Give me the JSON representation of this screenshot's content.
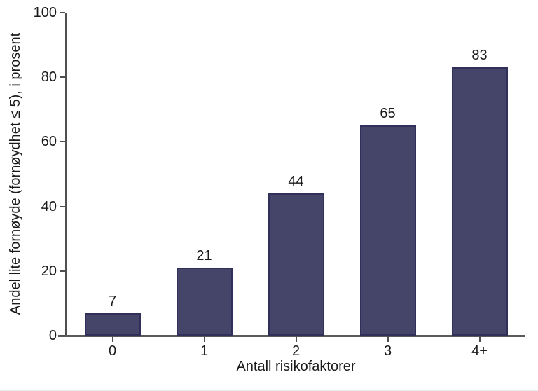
{
  "chart_data": {
    "type": "bar",
    "categories": [
      "0",
      "1",
      "2",
      "3",
      "4+"
    ],
    "values": [
      7,
      21,
      44,
      65,
      83
    ],
    "title": "",
    "xlabel": "Antall risikofaktorer",
    "ylabel": "Andel lite fornøyde (fornøydhet ≤ 5), i prosent",
    "yticks": [
      0,
      20,
      40,
      60,
      80,
      100
    ],
    "ylim": [
      0,
      100
    ],
    "grid": "off",
    "legend": "none",
    "bar_color": "#454569",
    "bar_border_color": "#30305a",
    "axis_color": "#4f4f4f",
    "text_color": "#1a1a1a",
    "background_color": "#ffffff"
  }
}
